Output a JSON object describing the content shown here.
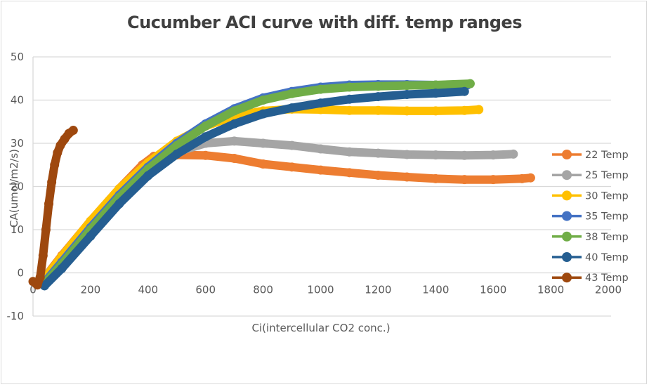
{
  "chart_data": {
    "type": "scatter",
    "title": "Cucumber ACI curve  with diff. temp ranges",
    "xlabel": "Ci(intercellular CO2 conc.)",
    "ylabel": "CA(umol/m2/s)",
    "xlim": [
      0,
      2000
    ],
    "ylim": [
      -10,
      50
    ],
    "xticks": [
      0,
      200,
      400,
      600,
      800,
      1000,
      1200,
      1400,
      1600,
      1800,
      2000
    ],
    "yticks": [
      -10,
      0,
      10,
      20,
      30,
      40,
      50
    ],
    "grid": "horizontal",
    "legend_position": "right",
    "series": [
      {
        "name": "22 Temp",
        "color": "#ED7D31",
        "points": [
          [
            30,
            -2
          ],
          [
            100,
            4
          ],
          [
            200,
            12
          ],
          [
            300,
            19.5
          ],
          [
            380,
            25
          ],
          [
            420,
            27
          ],
          [
            500,
            27.3
          ],
          [
            600,
            27.2
          ],
          [
            700,
            26.5
          ],
          [
            800,
            25.2
          ],
          [
            900,
            24.5
          ],
          [
            1000,
            23.8
          ],
          [
            1100,
            23.2
          ],
          [
            1200,
            22.6
          ],
          [
            1300,
            22.2
          ],
          [
            1400,
            21.8
          ],
          [
            1500,
            21.6
          ],
          [
            1600,
            21.6
          ],
          [
            1700,
            21.8
          ],
          [
            1730,
            22
          ]
        ]
      },
      {
        "name": " 25 Temp",
        "color": "#A5A5A5",
        "points": [
          [
            35,
            -1.5
          ],
          [
            100,
            3.5
          ],
          [
            200,
            11.5
          ],
          [
            300,
            18.5
          ],
          [
            400,
            24.5
          ],
          [
            500,
            28
          ],
          [
            600,
            30
          ],
          [
            700,
            30.5
          ],
          [
            800,
            30
          ],
          [
            900,
            29.5
          ],
          [
            1000,
            28.7
          ],
          [
            1100,
            28
          ],
          [
            1200,
            27.7
          ],
          [
            1300,
            27.4
          ],
          [
            1400,
            27.3
          ],
          [
            1500,
            27.2
          ],
          [
            1600,
            27.3
          ],
          [
            1670,
            27.5
          ]
        ]
      },
      {
        "name": "30 Temp",
        "color": "#FFC000",
        "points": [
          [
            35,
            -1.8
          ],
          [
            100,
            3.8
          ],
          [
            200,
            12
          ],
          [
            300,
            19.5
          ],
          [
            400,
            25.5
          ],
          [
            500,
            30.5
          ],
          [
            600,
            34
          ],
          [
            700,
            36.3
          ],
          [
            800,
            37.5
          ],
          [
            900,
            37.9
          ],
          [
            1000,
            37.8
          ],
          [
            1100,
            37.6
          ],
          [
            1200,
            37.6
          ],
          [
            1300,
            37.5
          ],
          [
            1400,
            37.5
          ],
          [
            1500,
            37.6
          ],
          [
            1550,
            37.8
          ]
        ]
      },
      {
        "name": "35 Temp",
        "color": "#4472C4",
        "points": [
          [
            40,
            -2.2
          ],
          [
            100,
            2.5
          ],
          [
            200,
            10.5
          ],
          [
            300,
            18
          ],
          [
            400,
            24.5
          ],
          [
            500,
            30
          ],
          [
            600,
            34.5
          ],
          [
            700,
            38
          ],
          [
            800,
            40.5
          ],
          [
            900,
            42
          ],
          [
            1000,
            43
          ],
          [
            1100,
            43.5
          ],
          [
            1200,
            43.6
          ],
          [
            1300,
            43.6
          ],
          [
            1400,
            43.5
          ],
          [
            1510,
            43.5
          ]
        ]
      },
      {
        "name": "38 Temp",
        "color": "#70AD47",
        "points": [
          [
            40,
            -2.5
          ],
          [
            100,
            2
          ],
          [
            200,
            10
          ],
          [
            300,
            17.5
          ],
          [
            400,
            24
          ],
          [
            500,
            29.5
          ],
          [
            600,
            34
          ],
          [
            700,
            37.5
          ],
          [
            800,
            40
          ],
          [
            900,
            41.5
          ],
          [
            1000,
            42.5
          ],
          [
            1100,
            43
          ],
          [
            1200,
            43.2
          ],
          [
            1300,
            43.4
          ],
          [
            1400,
            43.5
          ],
          [
            1520,
            43.8
          ]
        ]
      },
      {
        "name": "40 Temp",
        "color": "#255E91",
        "points": [
          [
            40,
            -3
          ],
          [
            100,
            1
          ],
          [
            200,
            8.5
          ],
          [
            300,
            16
          ],
          [
            400,
            22.5
          ],
          [
            500,
            27.5
          ],
          [
            600,
            31.5
          ],
          [
            700,
            34.5
          ],
          [
            800,
            36.8
          ],
          [
            900,
            38.2
          ],
          [
            1000,
            39.3
          ],
          [
            1100,
            40.2
          ],
          [
            1200,
            40.8
          ],
          [
            1300,
            41.3
          ],
          [
            1400,
            41.6
          ],
          [
            1500,
            42
          ]
        ]
      },
      {
        "name": "43 Temp",
        "color": "#9E480E",
        "points": [
          [
            0,
            -2
          ],
          [
            15,
            -2.8
          ],
          [
            25,
            -1
          ],
          [
            35,
            4
          ],
          [
            45,
            10
          ],
          [
            55,
            16
          ],
          [
            65,
            21
          ],
          [
            75,
            25
          ],
          [
            85,
            27.8
          ],
          [
            95,
            29.5
          ],
          [
            110,
            31
          ],
          [
            125,
            32.3
          ],
          [
            140,
            33
          ]
        ]
      }
    ]
  }
}
